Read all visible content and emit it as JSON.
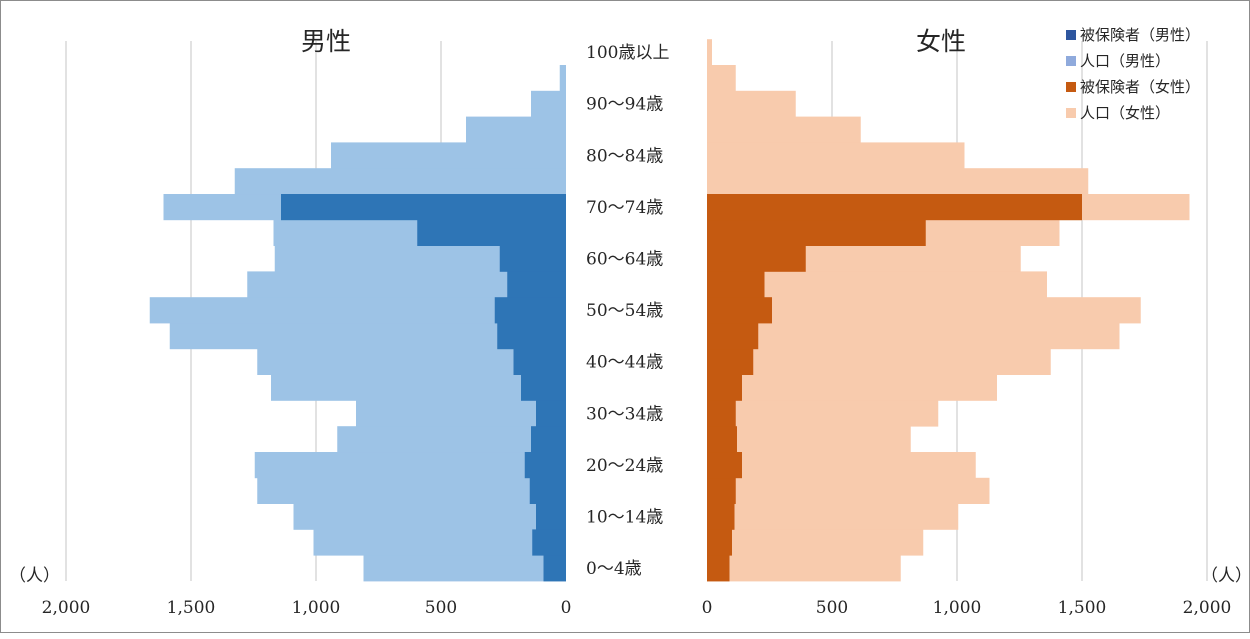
{
  "chart_data": {
    "type": "bar",
    "subtype": "population-pyramid",
    "categories": [
      "0～4歳",
      "5～9歳",
      "10～14歳",
      "15～19歳",
      "20～24歳",
      "25～29歳",
      "30～34歳",
      "35～39歳",
      "40～44歳",
      "45～49歳",
      "50～54歳",
      "55～59歳",
      "60～64歳",
      "65～69歳",
      "70～74歳",
      "75～79歳",
      "80～84歳",
      "85～89歳",
      "90～94歳",
      "95～99歳",
      "100歳以上"
    ],
    "category_labels_shown": [
      "0～4歳",
      "10～14歳",
      "20～24歳",
      "30～34歳",
      "40～44歳",
      "50～54歳",
      "60～64歳",
      "70～74歳",
      "80～84歳",
      "90～94歳",
      "100歳以上"
    ],
    "panels": {
      "male": {
        "title": "男性",
        "series": [
          {
            "name": "人口（男性）",
            "color": "#9dc3e6",
            "values": [
              810,
              1010,
              1090,
              1235,
              1245,
              915,
              840,
              1180,
              1235,
              1585,
              1665,
              1275,
              1165,
              1170,
              1610,
              1325,
              940,
              400,
              140,
              25,
              0
            ]
          },
          {
            "name": "被保険者（男性）",
            "color": "#2e75b6",
            "values": [
              90,
              135,
              120,
              145,
              165,
              140,
              120,
              180,
              210,
              275,
              285,
              235,
              265,
              595,
              1140,
              0,
              0,
              0,
              0,
              0,
              0
            ]
          }
        ]
      },
      "female": {
        "title": "女性",
        "series": [
          {
            "name": "人口（女性）",
            "color": "#f8cbad",
            "values": [
              775,
              865,
              1005,
              1130,
              1075,
              815,
              925,
              1160,
              1375,
              1650,
              1735,
              1360,
              1255,
              1410,
              1930,
              1525,
              1030,
              615,
              355,
              115,
              20
            ]
          },
          {
            "name": "被保険者（女性）",
            "color": "#c55a11",
            "values": [
              90,
              100,
              110,
              115,
              140,
              120,
              115,
              140,
              185,
              205,
              260,
              230,
              395,
              875,
              1500,
              0,
              0,
              0,
              0,
              0,
              0
            ]
          }
        ]
      }
    },
    "x_axis": {
      "male": {
        "ticks": [
          "2,000",
          "1,500",
          "1,000",
          "500",
          "0"
        ],
        "range": [
          2000,
          0
        ],
        "reversed": true
      },
      "female": {
        "ticks": [
          "0",
          "500",
          "1,000",
          "1,500",
          "2,000"
        ],
        "range": [
          0,
          2000
        ]
      }
    },
    "unit_label": "（人）",
    "grid": true,
    "legend": {
      "placement": "top-right",
      "items": [
        {
          "label": "被保険者（男性）",
          "color": "#2e569f"
        },
        {
          "label": "人口（男性）",
          "color": "#8faadc"
        },
        {
          "label": "被保険者（女性）",
          "color": "#c55a11"
        },
        {
          "label": "人口（女性）",
          "color": "#f8cbad"
        }
      ]
    }
  }
}
